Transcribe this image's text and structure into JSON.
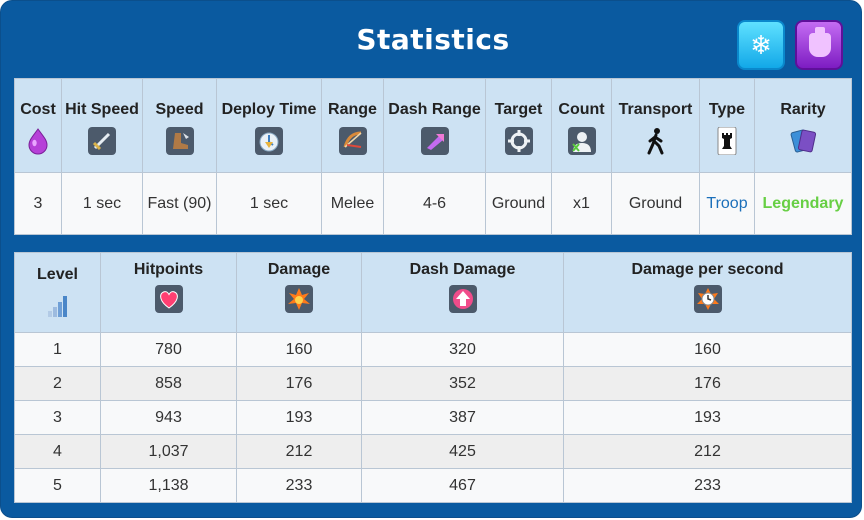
{
  "title": "Statistics",
  "top_icons": [
    "snowflake-icon",
    "potion-icon"
  ],
  "stats_table": {
    "headers": {
      "cost": "Cost",
      "hit_speed": "Hit Speed",
      "speed": "Speed",
      "deploy_time": "Deploy Time",
      "range": "Range",
      "dash_range": "Dash Range",
      "target": "Target",
      "count": "Count",
      "transport": "Transport",
      "type": "Type",
      "rarity": "Rarity"
    },
    "values": {
      "cost": "3",
      "hit_speed": "1 sec",
      "speed": "Fast (90)",
      "deploy_time": "1 sec",
      "range": "Melee",
      "dash_range": "4-6",
      "target": "Ground",
      "count": "x1",
      "transport": "Ground",
      "type": "Troop",
      "rarity": "Legendary"
    },
    "colors": {
      "type": "#1b6fba",
      "rarity": "#67cf44",
      "elixir": "#b640d8"
    }
  },
  "levels_table": {
    "headers": {
      "level": "Level",
      "hitpoints": "Hitpoints",
      "damage": "Damage",
      "dash_damage": "Dash Damage",
      "dps": "Damage per second"
    },
    "rows": [
      [
        "1",
        "780",
        "160",
        "320",
        "160"
      ],
      [
        "2",
        "858",
        "176",
        "352",
        "176"
      ],
      [
        "3",
        "943",
        "193",
        "387",
        "193"
      ],
      [
        "4",
        "1,037",
        "212",
        "425",
        "212"
      ],
      [
        "5",
        "1,138",
        "233",
        "467",
        "233"
      ]
    ]
  }
}
